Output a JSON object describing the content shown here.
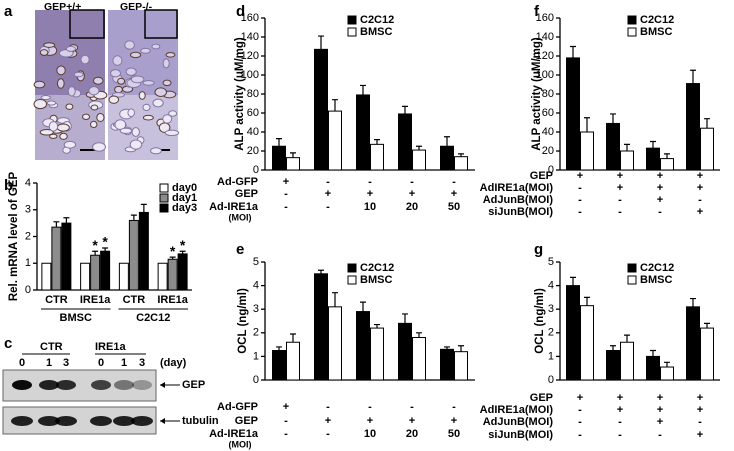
{
  "panels": {
    "a": {
      "label": "a",
      "images": [
        "GEP+/+",
        "GEP-/-"
      ]
    },
    "c": {
      "label": "c",
      "groups": [
        "CTR",
        "IRE1a"
      ],
      "days": [
        0,
        1,
        3,
        0,
        1,
        3
      ],
      "day_unit": "(day)",
      "bands": [
        "GEP",
        "tubulin"
      ]
    }
  },
  "chart_data": [
    {
      "type": "bar",
      "panel": "b",
      "ylabel": "Rel. mRNA level of GEP",
      "categories": [
        "CTR",
        "IRE1a",
        "CTR",
        "IRE1a"
      ],
      "groups": [
        "BMSC",
        "C2C12"
      ],
      "series": [
        {
          "name": "day0",
          "color": "#ffffff",
          "values": [
            1,
            1,
            1,
            1
          ]
        },
        {
          "name": "day1",
          "color": "#8c8c8c",
          "values": [
            2.35,
            1.3,
            2.6,
            1.15
          ],
          "errors": [
            0.2,
            0.15,
            0.2,
            0.08
          ],
          "significance": [
            null,
            "*",
            null,
            "*"
          ]
        },
        {
          "name": "day3",
          "color": "#000000",
          "values": [
            2.5,
            1.45,
            2.9,
            1.35
          ],
          "errors": [
            0.2,
            0.12,
            0.3,
            0.1
          ],
          "significance": [
            null,
            "*",
            null,
            "*"
          ]
        }
      ],
      "ylim": [
        0,
        4
      ],
      "yticks": [
        0,
        1,
        2,
        3,
        4
      ]
    },
    {
      "type": "bar",
      "panel": "d",
      "ylabel": "ALP activity (uM/mg)",
      "series": [
        {
          "name": "C2C12",
          "color": "#000000",
          "values": [
            25,
            127,
            79,
            59,
            25
          ],
          "errors": [
            8,
            14,
            10,
            8,
            10
          ]
        },
        {
          "name": "BMSC",
          "color": "#ffffff",
          "values": [
            13,
            62,
            27,
            21,
            14
          ],
          "errors": [
            5,
            12,
            5,
            4,
            3
          ]
        }
      ],
      "conditions": [
        {
          "label": "Ad-GFP",
          "values": [
            "+",
            "-",
            "-",
            "-",
            "-"
          ]
        },
        {
          "label": "GEP",
          "values": [
            "-",
            "+",
            "+",
            "+",
            "+"
          ]
        },
        {
          "label": "Ad-IRE1a",
          "sublabel": "(MOI)",
          "values": [
            "-",
            "-",
            10,
            20,
            50
          ]
        }
      ],
      "ylim": [
        0,
        160
      ],
      "yticks": [
        0,
        20,
        40,
        60,
        80,
        100,
        120,
        140,
        160
      ]
    },
    {
      "type": "bar",
      "panel": "e",
      "ylabel": "OCL (ng/ml)",
      "series": [
        {
          "name": "C2C12",
          "color": "#000000",
          "values": [
            1.25,
            4.5,
            2.9,
            2.4,
            1.3
          ],
          "errors": [
            0.15,
            0.15,
            0.4,
            0.4,
            0.1
          ]
        },
        {
          "name": "BMSC",
          "color": "#ffffff",
          "values": [
            1.6,
            3.1,
            2.2,
            1.8,
            1.2
          ],
          "errors": [
            0.35,
            0.6,
            0.15,
            0.2,
            0.25
          ]
        }
      ],
      "conditions": [
        {
          "label": "Ad-GFP",
          "values": [
            "+",
            "-",
            "-",
            "-",
            "-"
          ]
        },
        {
          "label": "GEP",
          "values": [
            "-",
            "+",
            "+",
            "+",
            "+"
          ]
        },
        {
          "label": "Ad-IRE1a",
          "sublabel": "(MOI)",
          "values": [
            "-",
            "-",
            10,
            20,
            50
          ]
        }
      ],
      "ylim": [
        0,
        5
      ],
      "yticks": [
        0,
        1,
        2,
        3,
        4,
        5
      ]
    },
    {
      "type": "bar",
      "panel": "f",
      "ylabel": "ALP activity (uM/mg)",
      "series": [
        {
          "name": "C2C12",
          "color": "#000000",
          "values": [
            118,
            49,
            23,
            91
          ],
          "errors": [
            12,
            10,
            7,
            14
          ]
        },
        {
          "name": "BMSC",
          "color": "#ffffff",
          "values": [
            40,
            20,
            12,
            44
          ],
          "errors": [
            15,
            7,
            5,
            10
          ]
        }
      ],
      "conditions": [
        {
          "label": "GEP",
          "values": [
            "+",
            "+",
            "+",
            "+"
          ]
        },
        {
          "label": "AdIRE1a(MOI)",
          "values": [
            "-",
            "+",
            "+",
            "+"
          ]
        },
        {
          "label": "AdJunB(MOI)",
          "values": [
            "-",
            "-",
            "+",
            "-"
          ]
        },
        {
          "label": "siJunB(MOI)",
          "values": [
            "-",
            "-",
            "-",
            "+"
          ]
        }
      ],
      "ylim": [
        0,
        160
      ],
      "yticks": [
        0,
        20,
        40,
        60,
        80,
        100,
        120,
        140,
        160
      ]
    },
    {
      "type": "bar",
      "panel": "g",
      "ylabel": "OCL (ng/ml)",
      "series": [
        {
          "name": "C2C12",
          "color": "#000000",
          "values": [
            4.0,
            1.25,
            1.0,
            3.1
          ],
          "errors": [
            0.35,
            0.2,
            0.25,
            0.35
          ]
        },
        {
          "name": "BMSC",
          "color": "#ffffff",
          "values": [
            3.15,
            1.6,
            0.55,
            2.2
          ],
          "errors": [
            0.35,
            0.3,
            0.2,
            0.2
          ]
        }
      ],
      "conditions": [
        {
          "label": "GEP",
          "values": [
            "+",
            "+",
            "+",
            "+"
          ]
        },
        {
          "label": "AdIRE1a(MOI)",
          "values": [
            "-",
            "+",
            "+",
            "+"
          ]
        },
        {
          "label": "AdJunB(MOI)",
          "values": [
            "-",
            "-",
            "+",
            "-"
          ]
        },
        {
          "label": "siJunB(MOI)",
          "values": [
            "-",
            "-",
            "-",
            "+"
          ]
        }
      ],
      "ylim": [
        0,
        5
      ],
      "yticks": [
        0,
        1,
        2,
        3,
        4,
        5
      ]
    }
  ]
}
